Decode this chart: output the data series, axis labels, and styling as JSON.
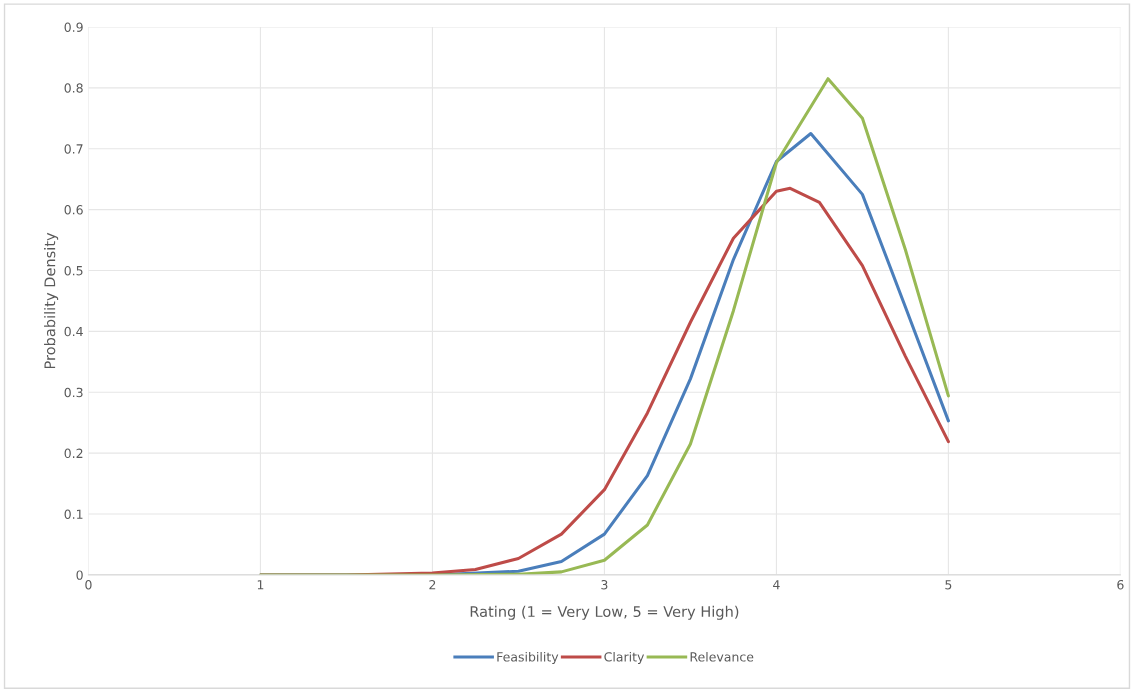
{
  "chart_data": {
    "type": "line",
    "xlabel": "Rating (1 = Very Low, 5 = Very High)",
    "ylabel": "Probability Density",
    "xlim": [
      0,
      6
    ],
    "xticks": [
      0,
      1,
      2,
      3,
      4,
      5,
      6
    ],
    "ylim": [
      0,
      0.9
    ],
    "yticks": [
      0,
      0.1,
      0.2,
      0.3,
      0.4,
      0.5,
      0.6,
      0.7,
      0.8,
      0.9
    ],
    "grid": true,
    "legend": "bottom",
    "marker": "none",
    "line_style": "solid",
    "series": [
      {
        "name": "Feasibility",
        "color": "#4a7ebb",
        "x": [
          1,
          1.5,
          2,
          2.5,
          2.75,
          3,
          3.25,
          3.5,
          3.75,
          4,
          4.2,
          4.5,
          4.75,
          5
        ],
        "values": [
          0,
          0,
          0,
          0.006,
          0.022,
          0.067,
          0.163,
          0.322,
          0.518,
          0.679,
          0.725,
          0.625,
          0.44,
          0.253
        ]
      },
      {
        "name": "Clarity",
        "color": "#be4b48",
        "x": [
          1,
          1.5,
          2,
          2.25,
          2.5,
          2.75,
          3,
          3.25,
          3.5,
          3.75,
          4,
          4.08,
          4.25,
          4.5,
          4.75,
          5
        ],
        "values": [
          0,
          0,
          0.003,
          0.009,
          0.027,
          0.067,
          0.14,
          0.266,
          0.415,
          0.553,
          0.63,
          0.635,
          0.612,
          0.508,
          0.359,
          0.219
        ]
      },
      {
        "name": "Relevance",
        "color": "#98b954",
        "x": [
          1,
          1.5,
          2,
          2.5,
          2.75,
          3,
          3.25,
          3.5,
          3.75,
          4,
          4.3,
          4.5,
          4.75,
          5
        ],
        "values": [
          0,
          0,
          0,
          0.001,
          0.005,
          0.024,
          0.082,
          0.215,
          0.434,
          0.677,
          0.815,
          0.75,
          0.534,
          0.294
        ]
      }
    ]
  }
}
